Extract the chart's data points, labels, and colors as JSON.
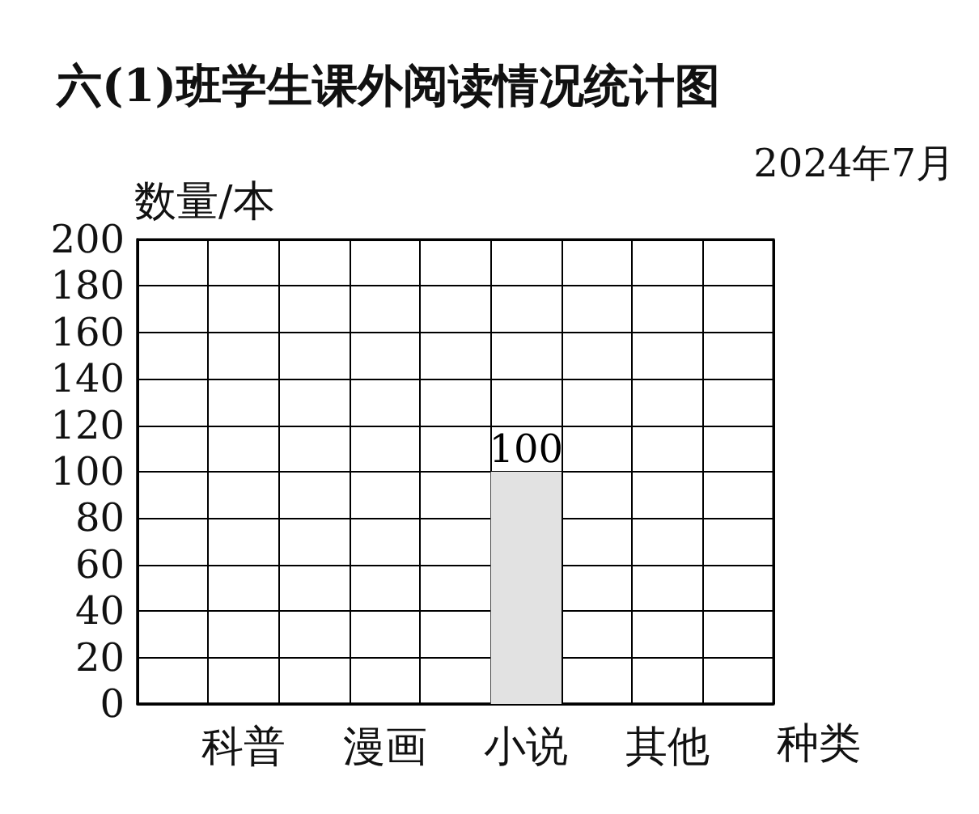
{
  "chart_data": {
    "type": "bar",
    "title": "六(1)班学生课外阅读情况统计图",
    "subtitle": "2024年7月",
    "ylabel": "数量/本",
    "xlabel": "种类",
    "categories": [
      null,
      "科普",
      null,
      "漫画",
      null,
      "小说",
      null,
      "其他",
      null
    ],
    "values": [
      null,
      null,
      null,
      null,
      null,
      100,
      null,
      null,
      null
    ],
    "color": "#e2e2e2",
    "data_labels": true,
    "ylim": [
      0,
      200
    ],
    "yticks": [
      0,
      20,
      40,
      60,
      80,
      100,
      120,
      140,
      160,
      180,
      200
    ],
    "grid": true
  }
}
